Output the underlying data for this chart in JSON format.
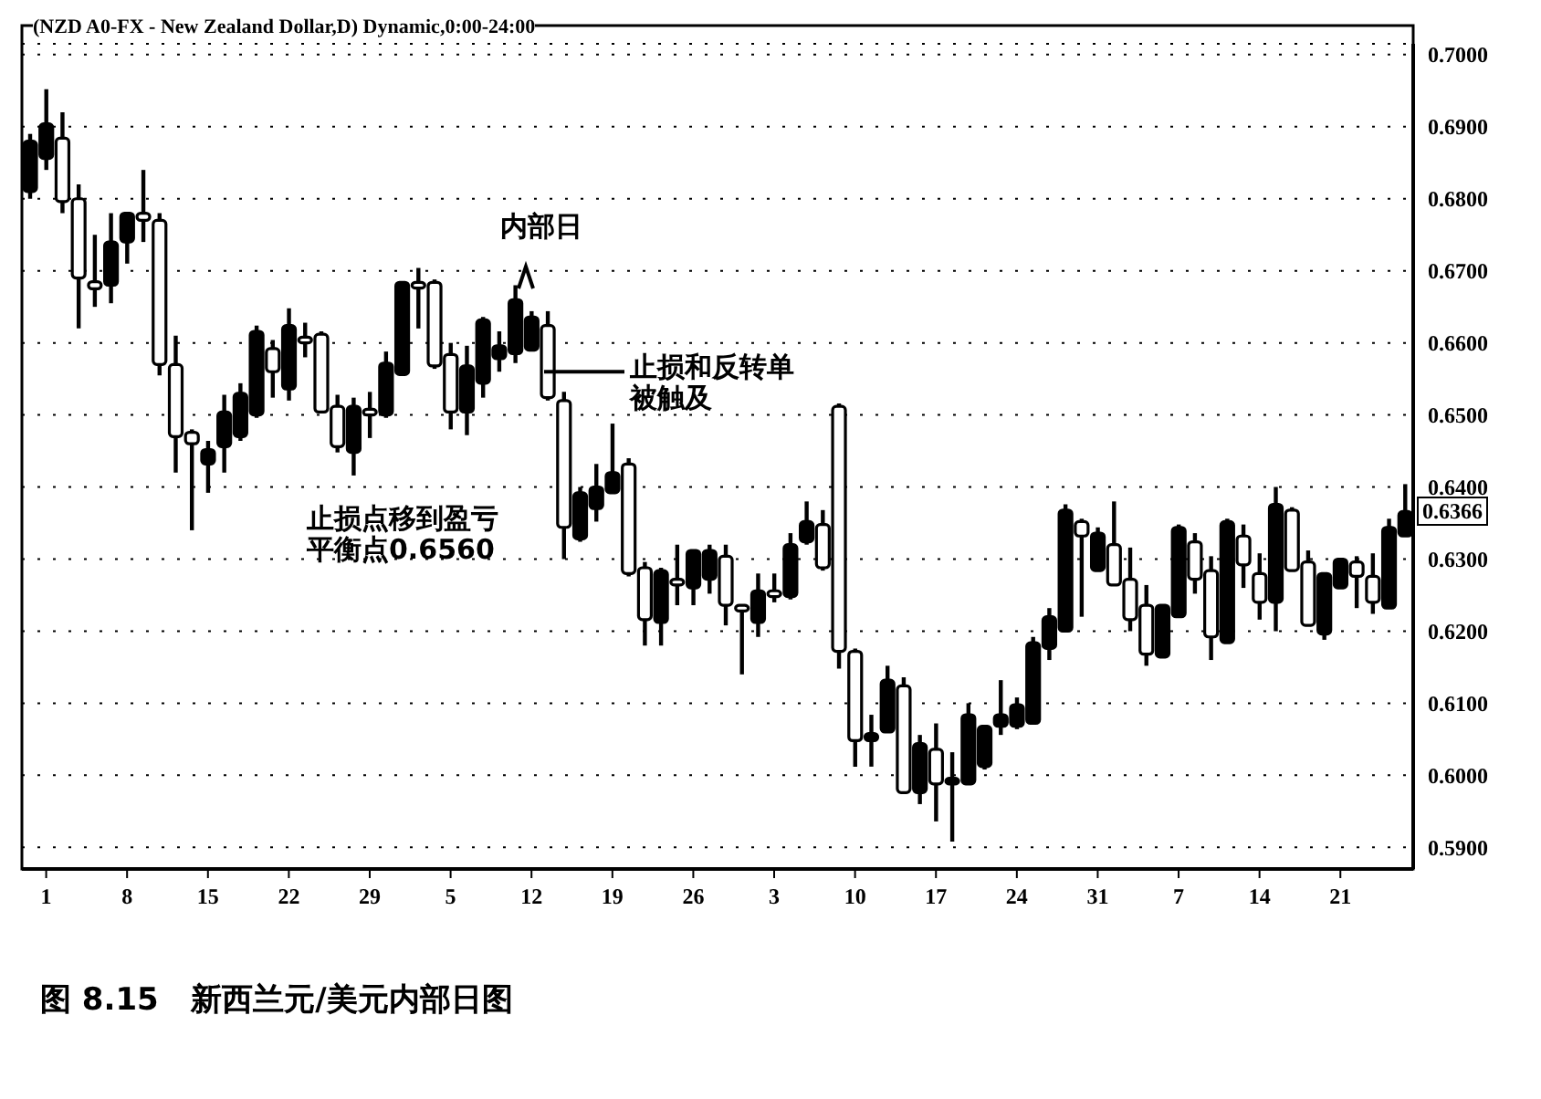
{
  "chart_data": {
    "type": "candlestick",
    "title": "图 8.15   新西兰元/美元内部日图",
    "color": "#000000",
    "categories": [
      null,
      "1",
      null,
      null,
      null,
      null,
      "8",
      null,
      null,
      null,
      null,
      "15",
      null,
      null,
      null,
      null,
      "22",
      null,
      null,
      null,
      null,
      "29",
      null,
      null,
      null,
      null,
      "5",
      null,
      null,
      null,
      null,
      "12",
      null,
      null,
      null,
      null,
      "19",
      null,
      null,
      null,
      null,
      "26",
      null,
      null,
      null,
      null,
      "3",
      null,
      null,
      null,
      null,
      "10",
      null,
      null,
      null,
      null,
      "17",
      null,
      null,
      null,
      null,
      "24",
      null,
      null,
      null,
      null,
      "31",
      null,
      null,
      null,
      null,
      "7",
      null,
      null,
      null,
      null,
      "14",
      null,
      null,
      null,
      null,
      "21",
      null,
      null,
      null,
      null
    ],
    "ohlc": [
      [
        0.681,
        0.689,
        0.68,
        0.688
      ],
      [
        0.6856,
        0.6952,
        0.684,
        0.6904
      ],
      [
        0.6884,
        0.692,
        0.678,
        0.6796
      ],
      [
        0.68,
        0.682,
        0.662,
        0.669
      ],
      [
        0.6685,
        0.675,
        0.665,
        0.6675
      ],
      [
        0.668,
        0.678,
        0.6655,
        0.674
      ],
      [
        0.674,
        0.678,
        0.671,
        0.678
      ],
      [
        0.678,
        0.684,
        0.674,
        0.677
      ],
      [
        0.677,
        0.678,
        0.6555,
        0.657
      ],
      [
        0.657,
        0.661,
        0.642,
        0.647
      ],
      [
        0.6476,
        0.648,
        0.634,
        0.646
      ],
      [
        0.6432,
        0.6464,
        0.6392,
        0.6452
      ],
      [
        0.6456,
        0.6528,
        0.642,
        0.6504
      ],
      [
        0.647,
        0.6544,
        0.6464,
        0.653
      ],
      [
        0.65,
        0.6624,
        0.6496,
        0.6616
      ],
      [
        0.6592,
        0.6604,
        0.6524,
        0.656
      ],
      [
        0.6536,
        0.6648,
        0.652,
        0.6624
      ],
      [
        0.6608,
        0.6628,
        0.658,
        0.66
      ],
      [
        0.6612,
        0.6616,
        0.6504,
        0.6504
      ],
      [
        0.6512,
        0.6528,
        0.6448,
        0.6456
      ],
      [
        0.6448,
        0.6524,
        0.6416,
        0.6512
      ],
      [
        0.6508,
        0.6532,
        0.6468,
        0.65
      ],
      [
        0.65,
        0.6588,
        0.6496,
        0.6572
      ],
      [
        0.6556,
        0.6684,
        0.6556,
        0.6684
      ],
      [
        0.6684,
        0.6704,
        0.662,
        0.6676
      ],
      [
        0.6684,
        0.6688,
        0.6564,
        0.6568
      ],
      [
        0.6584,
        0.66,
        0.648,
        0.6504
      ],
      [
        0.6504,
        0.6596,
        0.6472,
        0.6568
      ],
      [
        0.6544,
        0.6636,
        0.6524,
        0.6632
      ],
      [
        0.6578,
        0.6616,
        0.656,
        0.6596
      ],
      [
        0.6585,
        0.668,
        0.6572,
        0.666
      ],
      [
        0.659,
        0.6644,
        0.659,
        0.6636
      ],
      [
        0.6624,
        0.6644,
        0.652,
        0.6524
      ],
      [
        0.652,
        0.6532,
        0.63,
        0.6344
      ],
      [
        0.6328,
        0.64,
        0.6324,
        0.6392
      ],
      [
        0.637,
        0.6432,
        0.6352,
        0.64
      ],
      [
        0.6392,
        0.6488,
        0.6392,
        0.642
      ],
      [
        0.6432,
        0.644,
        0.6276,
        0.628
      ],
      [
        0.6288,
        0.6296,
        0.618,
        0.6216
      ],
      [
        0.6212,
        0.6288,
        0.618,
        0.6284
      ],
      [
        0.6272,
        0.632,
        0.6236,
        0.6264
      ],
      [
        0.626,
        0.6312,
        0.6236,
        0.6312
      ],
      [
        0.6272,
        0.632,
        0.6252,
        0.6312
      ],
      [
        0.6304,
        0.632,
        0.6208,
        0.6236
      ],
      [
        0.6236,
        0.6236,
        0.614,
        0.6228
      ],
      [
        0.6212,
        0.628,
        0.6192,
        0.6256
      ],
      [
        0.6256,
        0.628,
        0.624,
        0.6248
      ],
      [
        0.6248,
        0.6336,
        0.6244,
        0.632
      ],
      [
        0.6324,
        0.638,
        0.632,
        0.6352
      ],
      [
        0.6348,
        0.6368,
        0.6284,
        0.6288
      ],
      [
        0.6512,
        0.6516,
        0.6148,
        0.6172
      ],
      [
        0.6172,
        0.6176,
        0.6012,
        0.6048
      ],
      [
        0.6048,
        0.6084,
        0.6012,
        0.6058
      ],
      [
        0.606,
        0.6152,
        0.606,
        0.6132
      ],
      [
        0.6124,
        0.6136,
        0.5976,
        0.5976
      ],
      [
        0.5976,
        0.6056,
        0.596,
        0.6044
      ],
      [
        0.6036,
        0.6072,
        0.5936,
        0.5988
      ],
      [
        0.5988,
        0.6032,
        0.5908,
        0.5996
      ],
      [
        0.5988,
        0.61,
        0.5988,
        0.6084
      ],
      [
        0.6012,
        0.6068,
        0.6008,
        0.6068
      ],
      [
        0.6068,
        0.6132,
        0.6056,
        0.6084
      ],
      [
        0.6068,
        0.6108,
        0.6064,
        0.6098
      ],
      [
        0.6072,
        0.6192,
        0.6072,
        0.6184
      ],
      [
        0.6176,
        0.6232,
        0.616,
        0.622
      ],
      [
        0.62,
        0.6376,
        0.62,
        0.6368
      ],
      [
        0.6352,
        0.6356,
        0.622,
        0.6332
      ],
      [
        0.6284,
        0.6344,
        0.6284,
        0.6336
      ],
      [
        0.632,
        0.638,
        0.6264,
        0.6264
      ],
      [
        0.6272,
        0.6316,
        0.62,
        0.6216
      ],
      [
        0.6236,
        0.6264,
        0.6152,
        0.6168
      ],
      [
        0.6164,
        0.6236,
        0.6164,
        0.6236
      ],
      [
        0.622,
        0.6348,
        0.622,
        0.6344
      ],
      [
        0.6324,
        0.6336,
        0.6252,
        0.6272
      ],
      [
        0.6284,
        0.6304,
        0.616,
        0.6192
      ],
      [
        0.6184,
        0.6356,
        0.6184,
        0.6352
      ],
      [
        0.6332,
        0.6348,
        0.626,
        0.6292
      ],
      [
        0.628,
        0.6308,
        0.6216,
        0.624
      ],
      [
        0.624,
        0.64,
        0.62,
        0.6376
      ],
      [
        0.6368,
        0.6372,
        0.6284,
        0.6284
      ],
      [
        0.6296,
        0.6312,
        0.6208,
        0.6208
      ],
      [
        0.6196,
        0.628,
        0.6188,
        0.628
      ],
      [
        0.626,
        0.63,
        0.626,
        0.63
      ],
      [
        0.6296,
        0.6304,
        0.6232,
        0.6276
      ],
      [
        0.6276,
        0.6308,
        0.6224,
        0.624
      ],
      [
        0.6232,
        0.6356,
        0.6232,
        0.6344
      ],
      [
        0.6332,
        0.6404,
        0.6332,
        0.6366
      ]
    ],
    "ylim": [
      0.587,
      0.7015
    ],
    "yticks": [
      {
        "value": 0.59,
        "label": "0.5900"
      },
      {
        "value": 0.6,
        "label": "0.6000"
      },
      {
        "value": 0.61,
        "label": "0.6100"
      },
      {
        "value": 0.62,
        "label": "0.6200"
      },
      {
        "value": 0.63,
        "label": "0.6300"
      },
      {
        "value": 0.64,
        "label": "0.6400"
      },
      {
        "value": 0.65,
        "label": "0.6500"
      },
      {
        "value": 0.66,
        "label": "0.6600"
      },
      {
        "value": 0.67,
        "label": "0.6700"
      },
      {
        "value": 0.68,
        "label": "0.6800"
      },
      {
        "value": 0.69,
        "label": "0.6900"
      },
      {
        "value": 0.7,
        "label": "0.7000"
      }
    ],
    "grid": "y",
    "annotations": [
      "(NZD A0-FX - New Zealand Dollar,D) Dynamic,0:00-24:00",
      "内部日",
      "止损和反转单",
      "被触及",
      "止损点移到盈亏",
      "平衡点0.6560",
      {
        "text": "0.6366",
        "y": 0.6366
      }
    ]
  }
}
